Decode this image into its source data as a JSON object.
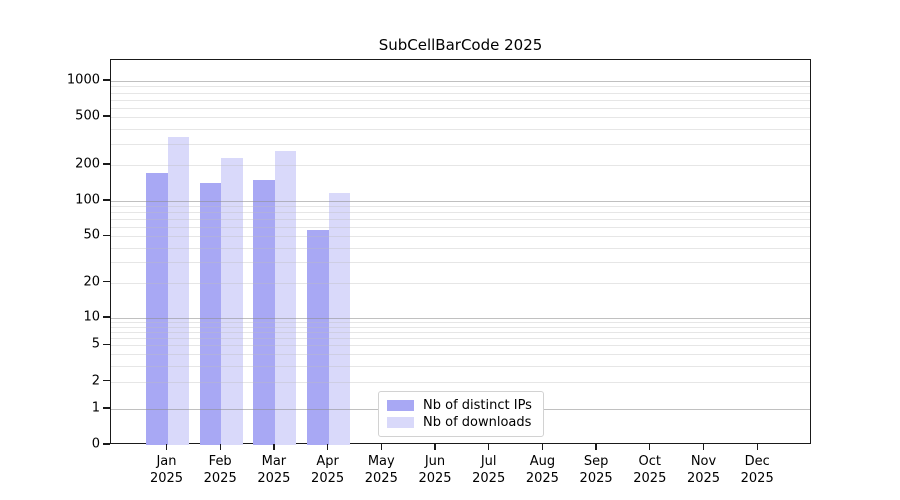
{
  "title": "SubCellBarCode 2025",
  "chart_data": {
    "type": "bar",
    "title": "SubCellBarCode 2025",
    "categories": [
      "Jan",
      "Feb",
      "Mar",
      "Apr",
      "May",
      "Jun",
      "Jul",
      "Aug",
      "Sep",
      "Oct",
      "Nov",
      "Dec"
    ],
    "category_year": "2025",
    "series": [
      {
        "name": "Nb of distinct IPs",
        "color": "#a8a8f4",
        "values": [
          170,
          140,
          150,
          57,
          null,
          null,
          null,
          null,
          null,
          null,
          null,
          null
        ]
      },
      {
        "name": "Nb of downloads",
        "color": "#d9d9fa",
        "values": [
          340,
          230,
          260,
          116,
          null,
          null,
          null,
          null,
          null,
          null,
          null,
          null
        ]
      }
    ],
    "yscale": "log-like (linear 0-1, log above)",
    "yticks": [
      0,
      1,
      2,
      5,
      10,
      20,
      50,
      100,
      200,
      500,
      1000
    ],
    "ylim": [
      0,
      1400
    ],
    "xlabel": "",
    "ylabel": "",
    "grid": "horizontal, major decades darker + faint minor log lines, drawn over bars",
    "legend_position": "inside lower-center"
  }
}
